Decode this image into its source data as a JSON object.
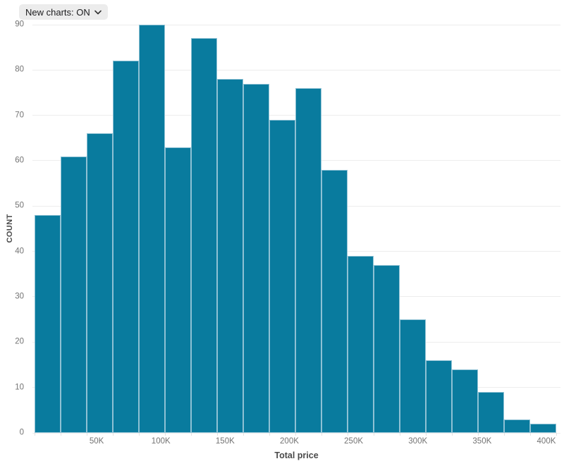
{
  "controls": {
    "new_charts_dropdown": {
      "label": "New charts: ON",
      "icon": "chevron-down"
    }
  },
  "chart_data": {
    "type": "bar",
    "subtype": "histogram",
    "title": "",
    "xlabel": "Total price",
    "ylabel": "COUNT",
    "bin_start": 0,
    "bin_width": 20000,
    "values": [
      48,
      61,
      66,
      82,
      90,
      63,
      87,
      78,
      77,
      69,
      76,
      58,
      39,
      37,
      25,
      16,
      14,
      9,
      3,
      2
    ],
    "y_ticks": [
      0,
      10,
      20,
      30,
      40,
      50,
      60,
      70,
      80,
      90
    ],
    "x_ticks": [
      {
        "label": "50K",
        "value": 50000
      },
      {
        "label": "100K",
        "value": 100000
      },
      {
        "label": "150K",
        "value": 150000
      },
      {
        "label": "200K",
        "value": 200000
      },
      {
        "label": "250K",
        "value": 250000
      },
      {
        "label": "300K",
        "value": 300000
      },
      {
        "label": "350K",
        "value": 350000
      },
      {
        "label": "400K",
        "value": 400000
      }
    ],
    "ylim": [
      0,
      90
    ],
    "xlim": [
      0,
      411000
    ],
    "grid": "horizontal",
    "legend": null
  },
  "colors": {
    "bar_fill": "#097b9e",
    "bar_stroke": "#8ec1d4",
    "gridline": "#ededed",
    "tick_label": "#737373",
    "axis_title": "#4a4a4a",
    "dropdown_bg": "#ececec",
    "dropdown_text": "#1c1c1e"
  }
}
